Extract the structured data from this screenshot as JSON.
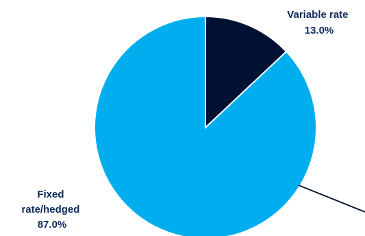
{
  "chart_data": {
    "type": "pie",
    "slices": [
      {
        "label_lines": [
          "Variable rate",
          "13.0%"
        ],
        "value": 13.0,
        "color": "#001133"
      },
      {
        "label_lines": [
          "Fixed",
          "rate/hedged",
          "87.0%"
        ],
        "value": 87.0,
        "color": "#00AEEF"
      }
    ],
    "start_angle": "12 o'clock",
    "direction": "clockwise",
    "slice_border_color": "#ffffff",
    "label_color": "#0b2a5b",
    "leader_line_color": "#0b1a33"
  }
}
